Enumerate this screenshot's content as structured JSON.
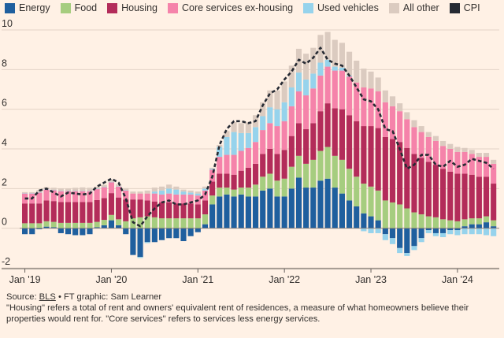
{
  "chart_data": {
    "type": "stacked-bar-with-line",
    "x_tick_labels": [
      "Jan '19",
      "Jan '20",
      "Jan '21",
      "Jan '22",
      "Jan '23",
      "Jan '24"
    ],
    "months": [
      "2019-01",
      "2019-02",
      "2019-03",
      "2019-04",
      "2019-05",
      "2019-06",
      "2019-07",
      "2019-08",
      "2019-09",
      "2019-10",
      "2019-11",
      "2019-12",
      "2020-01",
      "2020-02",
      "2020-03",
      "2020-04",
      "2020-05",
      "2020-06",
      "2020-07",
      "2020-08",
      "2020-09",
      "2020-10",
      "2020-11",
      "2020-12",
      "2021-01",
      "2021-02",
      "2021-03",
      "2021-04",
      "2021-05",
      "2021-06",
      "2021-07",
      "2021-08",
      "2021-09",
      "2021-10",
      "2021-11",
      "2021-12",
      "2022-01",
      "2022-02",
      "2022-03",
      "2022-04",
      "2022-05",
      "2022-06",
      "2022-07",
      "2022-08",
      "2022-09",
      "2022-10",
      "2022-11",
      "2022-12",
      "2023-01",
      "2023-02",
      "2023-03",
      "2023-04",
      "2023-05",
      "2023-06",
      "2023-07",
      "2023-08",
      "2023-09",
      "2023-10",
      "2023-11",
      "2023-12",
      "2024-01",
      "2024-02",
      "2024-03",
      "2024-04",
      "2024-05",
      "2024-06"
    ],
    "y_tick_labels": [
      "-2",
      "0",
      "2",
      "4",
      "6",
      "8",
      "10"
    ],
    "ylim": [
      -2,
      10
    ],
    "ylabel": "",
    "legend": [
      "Energy",
      "Food",
      "Housing",
      "Core services ex-housing",
      "Used vehicles",
      "All other",
      "CPI"
    ],
    "colors": {
      "Energy": "#1f5f9e",
      "Food": "#a6cd7f",
      "Housing": "#b32c5a",
      "Core services ex-housing": "#f583aa",
      "Used vehicles": "#96d3ec",
      "All other": "#dbcbc0",
      "CPI": "#262a33"
    },
    "series": [
      {
        "name": "Energy",
        "values": [
          -0.3,
          -0.3,
          -0.05,
          0.08,
          0.05,
          -0.25,
          -0.3,
          -0.35,
          -0.35,
          -0.3,
          0.05,
          0.15,
          0.4,
          0.15,
          -0.3,
          -1.35,
          -1.45,
          -0.7,
          -0.7,
          -0.6,
          -0.5,
          -0.5,
          -0.65,
          -0.4,
          -0.2,
          0.2,
          1.2,
          1.6,
          1.7,
          1.6,
          1.7,
          1.6,
          1.6,
          1.9,
          2.0,
          1.6,
          1.6,
          2.0,
          2.55,
          2.05,
          2.05,
          2.4,
          2.5,
          2.05,
          1.75,
          1.4,
          1.1,
          0.75,
          0.6,
          0.4,
          -0.3,
          -0.5,
          -1.0,
          -1.25,
          -0.9,
          -0.5,
          -0.1,
          -0.25,
          -0.25,
          -0.1,
          -0.1,
          0.1,
          0.2,
          0.2,
          0.3,
          0.1
        ]
      },
      {
        "name": "Food",
        "values": [
          0.25,
          0.25,
          0.25,
          0.27,
          0.27,
          0.27,
          0.27,
          0.27,
          0.27,
          0.27,
          0.27,
          0.27,
          0.27,
          0.3,
          0.35,
          0.5,
          0.55,
          0.6,
          0.55,
          0.5,
          0.5,
          0.5,
          0.5,
          0.5,
          0.5,
          0.5,
          0.45,
          0.45,
          0.35,
          0.35,
          0.35,
          0.45,
          0.6,
          0.7,
          0.75,
          0.8,
          0.9,
          1.1,
          1.1,
          1.2,
          1.4,
          1.5,
          1.6,
          1.6,
          1.7,
          1.6,
          1.5,
          1.5,
          1.5,
          1.5,
          1.4,
          1.3,
          1.2,
          1.0,
          0.8,
          0.7,
          0.6,
          0.55,
          0.45,
          0.4,
          0.35,
          0.35,
          0.3,
          0.3,
          0.3,
          0.3
        ]
      },
      {
        "name": "Housing",
        "values": [
          1.0,
          1.0,
          1.0,
          1.05,
          1.05,
          1.05,
          1.05,
          1.05,
          1.05,
          1.05,
          1.1,
          1.1,
          1.1,
          1.1,
          1.1,
          0.95,
          0.9,
          0.8,
          0.8,
          0.8,
          0.8,
          0.75,
          0.75,
          0.75,
          0.7,
          0.7,
          0.7,
          0.7,
          0.7,
          0.75,
          0.85,
          1.0,
          1.05,
          1.15,
          1.25,
          1.35,
          1.45,
          1.55,
          1.65,
          1.75,
          1.85,
          2.0,
          2.2,
          2.4,
          2.55,
          2.7,
          2.8,
          2.9,
          3.05,
          3.15,
          3.2,
          3.2,
          3.15,
          3.05,
          2.95,
          2.85,
          2.75,
          2.65,
          2.55,
          2.45,
          2.4,
          2.3,
          2.2,
          2.1,
          2.0,
          1.85
        ]
      },
      {
        "name": "Core services ex-housing",
        "values": [
          0.5,
          0.5,
          0.55,
          0.55,
          0.55,
          0.55,
          0.55,
          0.55,
          0.55,
          0.55,
          0.55,
          0.55,
          0.55,
          0.55,
          0.45,
          0.3,
          0.3,
          0.35,
          0.4,
          0.4,
          0.45,
          0.45,
          0.45,
          0.45,
          0.45,
          0.5,
          0.6,
          0.85,
          0.95,
          1.0,
          1.0,
          1.0,
          1.1,
          1.2,
          1.3,
          1.4,
          1.45,
          1.5,
          1.6,
          1.7,
          1.75,
          1.8,
          1.85,
          1.9,
          1.95,
          1.95,
          1.95,
          1.95,
          1.9,
          1.85,
          1.75,
          1.65,
          1.55,
          1.45,
          1.35,
          1.3,
          1.25,
          1.2,
          1.15,
          1.15,
          1.1,
          1.1,
          1.05,
          1.0,
          1.0,
          1.0
        ]
      },
      {
        "name": "Used vehicles",
        "values": [
          0.02,
          0.02,
          0.02,
          0.02,
          0.02,
          0.02,
          0.02,
          0.02,
          0.02,
          0.02,
          0.02,
          0.02,
          0.02,
          0.02,
          0.02,
          0.0,
          -0.05,
          -0.05,
          0.1,
          0.2,
          0.25,
          0.25,
          0.15,
          0.1,
          0.1,
          0.1,
          0.05,
          0.5,
          0.9,
          1.15,
          0.9,
          0.75,
          0.75,
          0.7,
          0.8,
          0.85,
          0.95,
          0.95,
          0.95,
          0.8,
          0.75,
          0.65,
          0.35,
          0.2,
          0.15,
          0.05,
          0.0,
          -0.15,
          -0.25,
          -0.25,
          -0.3,
          -0.3,
          -0.25,
          -0.15,
          -0.2,
          -0.2,
          -0.15,
          -0.15,
          -0.2,
          -0.2,
          -0.25,
          -0.3,
          -0.3,
          -0.3,
          -0.35,
          -0.4
        ]
      },
      {
        "name": "All other",
        "values": [
          0.05,
          0.05,
          0.1,
          0.1,
          0.1,
          0.12,
          0.12,
          0.15,
          0.17,
          0.15,
          0.1,
          0.1,
          0.1,
          0.1,
          0.1,
          0.1,
          0.1,
          0.15,
          0.2,
          0.2,
          0.2,
          0.15,
          0.1,
          0.1,
          0.1,
          0.1,
          0.05,
          0.1,
          0.3,
          0.5,
          0.5,
          0.55,
          0.6,
          0.7,
          0.85,
          0.95,
          1.05,
          1.1,
          1.2,
          1.3,
          1.3,
          1.4,
          1.4,
          1.35,
          1.25,
          1.2,
          1.1,
          0.95,
          0.85,
          0.7,
          0.6,
          0.5,
          0.4,
          0.35,
          0.35,
          0.3,
          0.25,
          0.25,
          0.25,
          0.25,
          0.25,
          0.2,
          0.2,
          0.2,
          0.2,
          0.2
        ]
      }
    ],
    "cpi": [
      1.5,
      1.5,
      1.9,
      2.0,
      1.8,
      1.6,
      1.8,
      1.75,
      1.7,
      1.75,
      2.1,
      2.3,
      2.5,
      2.3,
      1.5,
      0.3,
      0.1,
      0.6,
      1.0,
      1.3,
      1.4,
      1.2,
      1.2,
      1.3,
      1.4,
      1.7,
      2.6,
      4.2,
      5.0,
      5.4,
      5.4,
      5.3,
      5.4,
      6.2,
      6.8,
      7.0,
      7.5,
      7.9,
      8.5,
      8.3,
      8.6,
      9.1,
      8.5,
      8.3,
      8.2,
      7.7,
      7.1,
      6.5,
      6.4,
      6.0,
      5.0,
      4.9,
      4.0,
      3.0,
      3.2,
      3.7,
      3.7,
      3.2,
      3.1,
      3.4,
      3.1,
      3.2,
      3.5,
      3.4,
      3.3,
      3.0
    ]
  },
  "footer": {
    "source_label": "Source:",
    "source_link": "BLS",
    "credit": "• FT graphic: Sam Learner",
    "note": "\"Housing\" refers a total of rent and owners' equivalent rent of residences, a measure of what homeowners believe their properties would rent for. \"Core services\" refers to services less energy services."
  }
}
